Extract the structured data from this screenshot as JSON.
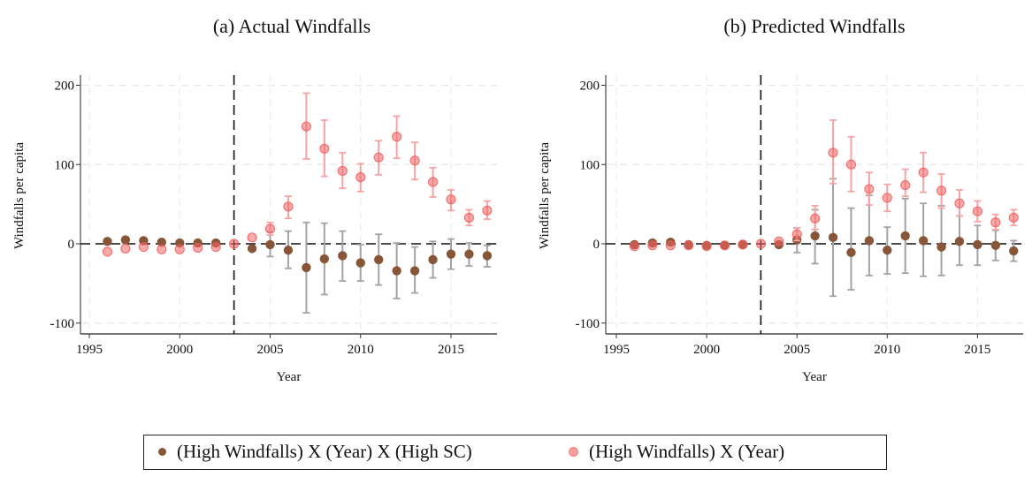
{
  "chart_data": [
    {
      "type": "scatter",
      "subtype": "coefficient plot with confidence intervals",
      "title": "(a) Actual Windfalls",
      "xlabel": "Year",
      "ylabel": "Windfalls per capita",
      "xlim": [
        1994.4,
        2017.6
      ],
      "ylim": [
        -112,
        212
      ],
      "xticks": [
        1995,
        2000,
        2005,
        2010,
        2015
      ],
      "yticks": [
        -100,
        0,
        100,
        200
      ],
      "xtick_labels": [
        "1995",
        "2000",
        "2005",
        "2010",
        "2015"
      ],
      "ytick_labels": [
        "-100",
        "0",
        "100",
        "200"
      ],
      "grid": true,
      "reference_lines": {
        "horizontal": 0,
        "vertical": 2003
      },
      "series": [
        {
          "name": "(High Windfalls) X (Year) X (High SC)",
          "color": "#875638",
          "x": [
            1996,
            1997,
            1998,
            1999,
            2000,
            2001,
            2002,
            2004,
            2005,
            2006,
            2007,
            2008,
            2009,
            2010,
            2011,
            2012,
            2013,
            2014,
            2015,
            2016,
            2017
          ],
          "y": [
            3,
            5,
            4,
            2,
            1,
            1,
            1,
            -6,
            -1,
            -8,
            -30,
            -19,
            -15,
            -24,
            -20,
            -34,
            -34,
            -20,
            -13,
            -13,
            -15
          ],
          "lower": [
            1,
            3,
            2,
            0,
            -1,
            -1,
            -1,
            -8,
            -16,
            -31,
            -87,
            -64,
            -47,
            -47,
            -52,
            -69,
            -62,
            -43,
            -32,
            -28,
            -29
          ],
          "upper": [
            5,
            7,
            6,
            4,
            3,
            3,
            3,
            -4,
            15,
            16,
            27,
            26,
            16,
            -1,
            12,
            1,
            -4,
            3,
            6,
            1,
            -2
          ]
        },
        {
          "name": "(High Windfalls) X (Year)",
          "color": "#f47c7c",
          "x": [
            1996,
            1997,
            1998,
            1999,
            2000,
            2001,
            2002,
            2003,
            2004,
            2005,
            2006,
            2007,
            2008,
            2009,
            2010,
            2011,
            2012,
            2013,
            2014,
            2015,
            2016,
            2017
          ],
          "y": [
            -10,
            -6,
            -4,
            -7,
            -7,
            -5,
            -4,
            0,
            8,
            19,
            47,
            148,
            120,
            92,
            84,
            109,
            135,
            105,
            78,
            56,
            33,
            42
          ],
          "lower": [
            -12,
            -8,
            -6,
            -9,
            -9,
            -7,
            -6,
            0,
            6,
            11,
            32,
            107,
            85,
            70,
            66,
            87,
            108,
            81,
            59,
            42,
            23,
            31
          ],
          "upper": [
            -8,
            -4,
            -2,
            -5,
            -5,
            -3,
            -2,
            0,
            10,
            27,
            60,
            190,
            156,
            115,
            101,
            130,
            161,
            128,
            96,
            68,
            43,
            54
          ]
        }
      ]
    },
    {
      "type": "scatter",
      "subtype": "coefficient plot with confidence intervals",
      "title": "(b) Predicted Windfalls",
      "xlabel": "Year",
      "ylabel": "Windfalls per capita",
      "xlim": [
        1994.4,
        2017.6
      ],
      "ylim": [
        -112,
        212
      ],
      "xticks": [
        1995,
        2000,
        2005,
        2010,
        2015
      ],
      "yticks": [
        -100,
        0,
        100,
        200
      ],
      "xtick_labels": [
        "1995",
        "2000",
        "2005",
        "2010",
        "2015"
      ],
      "ytick_labels": [
        "-100",
        "0",
        "100",
        "200"
      ],
      "grid": true,
      "reference_lines": {
        "horizontal": 0,
        "vertical": 2003
      },
      "series": [
        {
          "name": "(High Windfalls) X (Year) X (High SC)",
          "color": "#875638",
          "x": [
            1996,
            1997,
            1998,
            1999,
            2000,
            2001,
            2002,
            2004,
            2005,
            2006,
            2007,
            2008,
            2009,
            2010,
            2011,
            2012,
            2013,
            2014,
            2015,
            2016,
            2017
          ],
          "y": [
            -1,
            1,
            2,
            -1,
            -2,
            -2,
            -1,
            -1,
            5,
            10,
            8,
            -11,
            4,
            -8,
            10,
            4,
            -4,
            3,
            -1,
            -2,
            -9
          ],
          "lower": [
            -3,
            -1,
            0,
            -3,
            -4,
            -4,
            -3,
            -3,
            -11,
            -25,
            -66,
            -58,
            -40,
            -38,
            -37,
            -41,
            -40,
            -27,
            -27,
            -21,
            -22
          ],
          "upper": [
            1,
            3,
            4,
            1,
            0,
            0,
            1,
            1,
            20,
            43,
            82,
            45,
            61,
            21,
            57,
            51,
            48,
            35,
            23,
            17,
            4
          ]
        },
        {
          "name": "(High Windfalls) X (Year)",
          "color": "#f47c7c",
          "x": [
            1996,
            1997,
            1998,
            1999,
            2000,
            2001,
            2002,
            2003,
            2004,
            2005,
            2006,
            2007,
            2008,
            2009,
            2010,
            2011,
            2012,
            2013,
            2014,
            2015,
            2016,
            2017
          ],
          "y": [
            -3,
            -2,
            -2,
            -2,
            -3,
            -2,
            -1,
            0,
            3,
            12,
            32,
            115,
            100,
            69,
            58,
            74,
            90,
            67,
            51,
            41,
            27,
            33
          ],
          "lower": [
            -5,
            -4,
            -4,
            -4,
            -5,
            -4,
            -3,
            0,
            1,
            4,
            18,
            76,
            66,
            49,
            41,
            60,
            65,
            45,
            35,
            28,
            18,
            23
          ],
          "upper": [
            -1,
            0,
            0,
            0,
            -1,
            0,
            1,
            0,
            5,
            20,
            48,
            156,
            135,
            90,
            75,
            94,
            115,
            88,
            68,
            54,
            37,
            43
          ]
        }
      ]
    }
  ],
  "legend": {
    "position": "bottom-center",
    "items": [
      {
        "label": "(High Windfalls) X (Year) X (High SC)",
        "color": "#875638"
      },
      {
        "label": "(High Windfalls) X (Year)",
        "color": "#f47c7c"
      }
    ]
  }
}
